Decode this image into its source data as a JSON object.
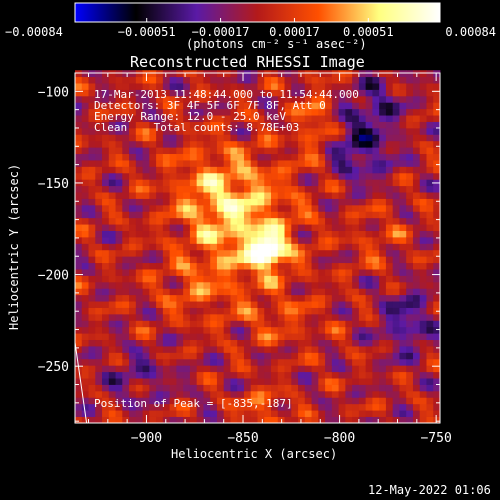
{
  "chart_data": {
    "type": "heatmap",
    "title": "Reconstructed RHESSI Image",
    "xlabel": "Heliocentric X (arcsec)",
    "ylabel": "Heliocentric Y (arcsec)",
    "xlim": [
      -937,
      -748
    ],
    "ylim": [
      -281,
      -90
    ],
    "x_ticks": [
      -900,
      -850,
      -800,
      -750
    ],
    "y_ticks": [
      -100,
      -150,
      -200,
      -250
    ],
    "x_tick_labels": [
      "−900",
      "−850",
      "−800",
      "−750"
    ],
    "y_tick_labels": [
      "−100",
      "−150",
      "−200",
      "−250"
    ],
    "colorbar": {
      "range": [
        -0.00084,
        0.00084
      ],
      "tick_values": [
        -0.00084,
        -0.00051,
        -0.00017,
        0.00017,
        0.00051,
        0.00084
      ],
      "tick_labels": [
        "−0.00084",
        "−0.00051",
        "−0.00017",
        "0.00017",
        "0.00051",
        "0.00084"
      ],
      "units_label": "(photons cm⁻² s⁻¹ asec⁻²)",
      "colors": [
        "#0000ff",
        "#000000",
        "#5a1aa6",
        "#b41a1a",
        "#ff5000",
        "#ffff80",
        "#ffffff"
      ]
    },
    "peak": {
      "x": -835,
      "y": -187
    },
    "limb_line": {
      "from": [
        -937,
        -237
      ],
      "to": [
        -931,
        -281
      ]
    },
    "annotations": {
      "time": "17-Mar-2013 11:48:44.000 to 11:54:44.000",
      "detectors": "Detectors: 3F 4F 5F 6F 7F 8F, Att 0",
      "energy": "Energy Range: 12.0 - 25.0 keV",
      "method": "Clean    Total counts: 8.78E+03",
      "peak_label": "Position of Peak = [-835,-187]"
    },
    "sources": [
      {
        "x": -837,
        "y": -187,
        "peak": 0.00084,
        "sx": 6,
        "sy": 6
      },
      {
        "x": -850,
        "y": -172,
        "peak": 0.00045,
        "sx": 20,
        "sy": 24
      },
      {
        "x": -868,
        "y": -152,
        "peak": 0.00022,
        "sx": 16,
        "sy": 16
      },
      {
        "x": -812,
        "y": -118,
        "peak": 0.00032,
        "sx": 7,
        "sy": 14
      },
      {
        "x": -876,
        "y": -208,
        "peak": 0.00018,
        "sx": 14,
        "sy": 12
      },
      {
        "x": -830,
        "y": -225,
        "peak": 0.00016,
        "sx": 16,
        "sy": 10
      },
      {
        "x": -840,
        "y": -272,
        "peak": 0.0003,
        "sx": 8,
        "sy": 6
      },
      {
        "x": -780,
        "y": -180,
        "peak": 0.00014,
        "sx": 10,
        "sy": 14
      },
      {
        "x": -790,
        "y": -130,
        "peak": -0.0004,
        "sx": 12,
        "sy": 14
      },
      {
        "x": -765,
        "y": -225,
        "peak": -0.00034,
        "sx": 10,
        "sy": 14
      },
      {
        "x": -905,
        "y": -255,
        "peak": -0.00022,
        "sx": 14,
        "sy": 10
      },
      {
        "x": -780,
        "y": -105,
        "peak": -0.00026,
        "sx": 10,
        "sy": 10
      }
    ]
  },
  "footer": {
    "timestamp": "12-May-2022 01:06"
  }
}
